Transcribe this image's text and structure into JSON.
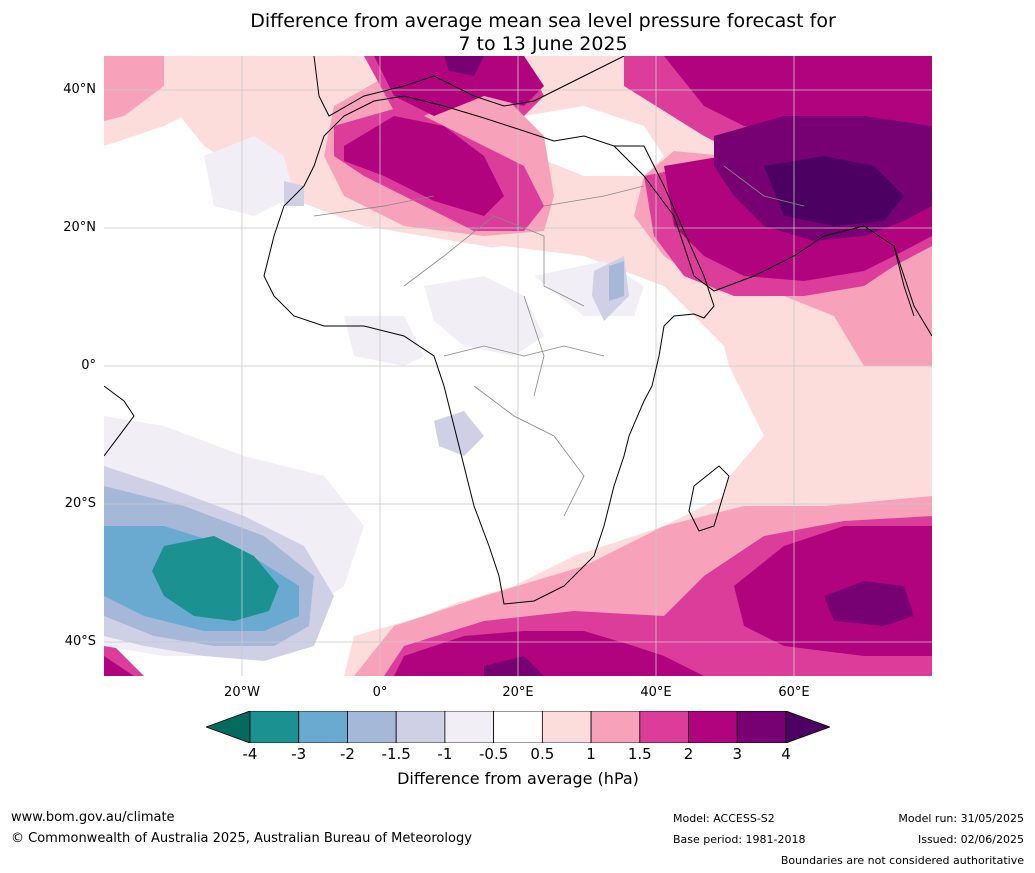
{
  "title_line1": "Difference from average mean sea level pressure forecast for",
  "title_line2": "7 to 13 June 2025",
  "lat_labels": [
    "40°N",
    "20°N",
    "0°",
    "20°S",
    "40°S"
  ],
  "lon_labels": [
    "20°W",
    "0°",
    "20°E",
    "40°E",
    "60°E"
  ],
  "colorbar": {
    "ticks": [
      "-4",
      "-3",
      "-2",
      "-1.5",
      "-1",
      "-0.5",
      "0.5",
      "1",
      "1.5",
      "2",
      "3",
      "4"
    ],
    "colors": [
      "#1b9191",
      "#6aaad0",
      "#a6b8d8",
      "#cfd0e6",
      "#f2eef5",
      "#ffffff",
      "#fddcdc",
      "#f8a1bb",
      "#dc3c9a",
      "#b2037f",
      "#770072"
    ],
    "under_color": "#046a5e",
    "over_color": "#4b0062",
    "label": "Difference from average (hPa)"
  },
  "footer": {
    "url": "www.bom.gov.au/climate",
    "copyright": "© Commonwealth of Australia 2025, Australian Bureau of Meteorology",
    "model": "Model: ACCESS-S2",
    "base_period": "Base period: 1981-2018",
    "model_run": "Model run: 31/05/2025",
    "issued": "Issued: 02/06/2025",
    "disclaimer": "Boundaries are not considered authoritative"
  }
}
